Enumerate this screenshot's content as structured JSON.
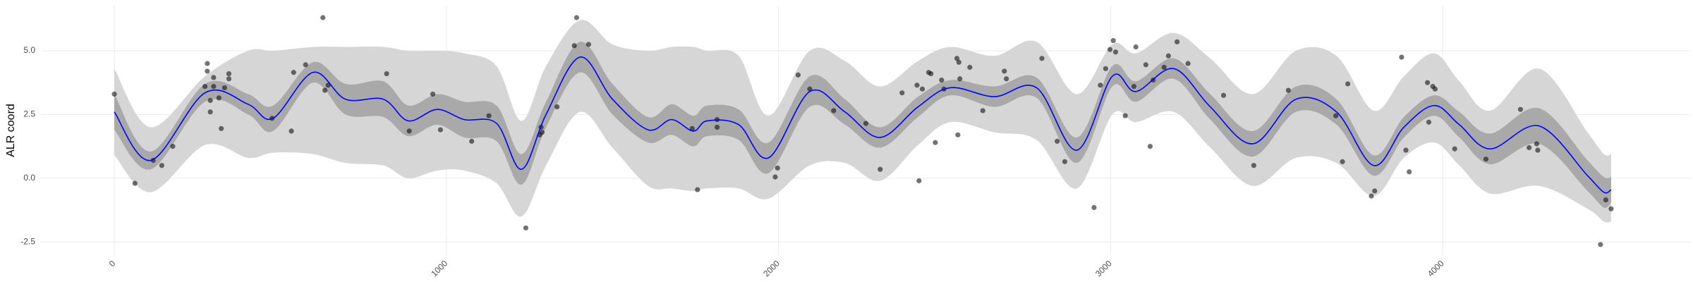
{
  "chart_data": {
    "type": "scatter-smooth",
    "y_label": "ALR coord",
    "xlim": [
      -221,
      4745
    ],
    "ylim": [
      -3.02,
      6.77
    ],
    "xticks": [
      0,
      1000,
      2000,
      3000,
      4000
    ],
    "yticks": [
      -2.5,
      {
        "value": 0,
        "label": "0.0"
      },
      2.5,
      {
        "value": 5,
        "label": "5.0"
      }
    ],
    "grid": true,
    "points": {
      "color": "#000000",
      "opacity": 0.55,
      "x": [
        0,
        62,
        117,
        143,
        176,
        273,
        280,
        280,
        289,
        289,
        299,
        299,
        315,
        322,
        332,
        345,
        345,
        475,
        533,
        540,
        576,
        628,
        634,
        644,
        820,
        888,
        959,
        982,
        1076,
        1128,
        1239,
        1281,
        1285,
        1288,
        1333,
        1385,
        1392,
        1428,
        1740,
        1756,
        1815,
        1815,
        1990,
        1997,
        2059,
        2094,
        2166,
        2263,
        2306,
        2372,
        2417,
        2423,
        2433,
        2452,
        2459,
        2472,
        2491,
        2498,
        2537,
        2543,
        2540,
        2546,
        2576,
        2615,
        2680,
        2686,
        2793,
        2839,
        2862,
        2950,
        2969,
        2985,
        2998,
        3008,
        3015,
        3044,
        3070,
        3076,
        3106,
        3119,
        3128,
        3161,
        3174,
        3200,
        3233,
        3340,
        3431,
        3535,
        3678,
        3698,
        3714,
        3785,
        3795,
        3876,
        3889,
        3899,
        3954,
        3970,
        3977,
        3958,
        4036,
        4130,
        4234,
        4260,
        4283,
        4286,
        4475,
        4491,
        4507
      ],
      "y": [
        3.3,
        -0.2,
        0.7,
        0.5,
        1.25,
        3.6,
        4.5,
        4.2,
        3.05,
        2.6,
        3.6,
        3.95,
        3.15,
        1.95,
        3.55,
        4.1,
        3.9,
        2.35,
        1.85,
        4.15,
        4.45,
        6.3,
        3.45,
        3.65,
        4.1,
        1.85,
        3.3,
        1.9,
        1.45,
        2.45,
        -1.95,
        1.7,
        2.0,
        1.8,
        2.8,
        5.2,
        6.3,
        5.25,
        1.95,
        -0.45,
        2.3,
        2.0,
        0.05,
        0.4,
        4.05,
        3.5,
        2.65,
        2.15,
        0.35,
        3.35,
        3.65,
        -0.1,
        3.5,
        4.15,
        4.1,
        1.4,
        3.85,
        3.5,
        4.7,
        4.55,
        1.7,
        3.9,
        4.35,
        2.65,
        4.2,
        3.9,
        4.7,
        1.45,
        0.65,
        -1.15,
        3.65,
        4.3,
        5.05,
        5.4,
        4.95,
        2.45,
        3.6,
        5.15,
        4.45,
        1.25,
        3.85,
        4.35,
        4.8,
        5.35,
        4.5,
        3.25,
        0.5,
        3.45,
        2.45,
        0.65,
        3.7,
        -0.7,
        -0.5,
        4.75,
        1.1,
        0.25,
        3.75,
        3.6,
        3.5,
        2.2,
        1.15,
        0.75,
        2.7,
        1.2,
        1.35,
        1.1,
        -2.6,
        -0.85,
        -1.2
      ]
    },
    "smooth": {
      "line_color": "#0000ff",
      "inner_color": "#a9a9a9",
      "outer_color": "#d6d6d6",
      "x": [
        0,
        110,
        273,
        403,
        478,
        598,
        696,
        810,
        885,
        972,
        1054,
        1151,
        1226,
        1300,
        1402,
        1500,
        1607,
        1678,
        1743,
        1785,
        1880,
        1970,
        2094,
        2200,
        2306,
        2420,
        2517,
        2650,
        2777,
        2898,
        3005,
        3076,
        3190,
        3300,
        3428,
        3558,
        3680,
        3792,
        3883,
        3974,
        4050,
        4143,
        4290,
        4436,
        4485,
        4507
      ],
      "fit": [
        2.6,
        0.7,
        3.35,
        2.9,
        2.35,
        4.15,
        3.1,
        3.1,
        2.25,
        2.7,
        2.3,
        2.15,
        0.35,
        2.5,
        4.75,
        3.1,
        1.9,
        2.3,
        1.85,
        2.25,
        2.1,
        0.8,
        3.4,
        2.6,
        1.6,
        2.8,
        3.55,
        3.2,
        3.55,
        1.1,
        4.0,
        3.4,
        4.3,
        2.8,
        1.35,
        3.1,
        2.6,
        0.5,
        2.0,
        2.85,
        2.1,
        1.15,
        2.05,
        0.1,
        -0.55,
        -0.45
      ],
      "inner_lower": [
        1.9,
        0.35,
        3.0,
        2.5,
        1.85,
        3.75,
        2.5,
        2.4,
        1.65,
        2.1,
        1.6,
        1.45,
        -0.25,
        2.0,
        4.15,
        2.5,
        1.4,
        1.7,
        1.25,
        1.65,
        1.5,
        0.2,
        2.8,
        2.1,
        1.2,
        2.4,
        3.25,
        2.8,
        3.15,
        0.6,
        3.6,
        3.0,
        3.9,
        2.3,
        0.85,
        2.6,
        2.1,
        0.1,
        1.6,
        2.45,
        1.6,
        0.55,
        1.35,
        -0.5,
        -1.15,
        -0.95
      ],
      "inner_upper": [
        3.3,
        1.05,
        3.7,
        3.3,
        2.85,
        4.55,
        3.7,
        3.8,
        2.85,
        3.3,
        3.0,
        2.85,
        0.95,
        3.0,
        5.35,
        3.7,
        2.4,
        2.9,
        2.45,
        2.85,
        2.7,
        1.4,
        4.0,
        3.1,
        2.0,
        3.2,
        3.85,
        3.6,
        3.95,
        1.6,
        4.4,
        3.8,
        4.7,
        3.3,
        1.85,
        3.6,
        3.1,
        0.9,
        2.4,
        3.25,
        2.6,
        1.75,
        2.75,
        0.7,
        0.05,
        0.05
      ],
      "outer_lower": [
        0.9,
        -0.55,
        1.3,
        0.8,
        1.0,
        0.95,
        0.6,
        0.5,
        0.0,
        0.3,
        0.3,
        -0.2,
        -1.5,
        0.5,
        2.6,
        1.2,
        -0.3,
        -0.4,
        -0.5,
        -0.4,
        -0.4,
        -0.8,
        0.5,
        0.6,
        -0.1,
        1.3,
        2.2,
        1.8,
        1.5,
        -0.4,
        2.5,
        2.2,
        2.6,
        1.2,
        -0.3,
        0.8,
        0.6,
        -0.7,
        0.8,
        1.4,
        0.5,
        -0.6,
        -0.3,
        -1.2,
        -1.7,
        -1.7
      ],
      "outer_upper": [
        4.3,
        2.0,
        4.0,
        5.0,
        5.0,
        5.15,
        5.15,
        5.15,
        5.0,
        5.0,
        4.9,
        4.4,
        2.25,
        4.4,
        6.2,
        5.25,
        5.0,
        5.15,
        5.15,
        5.0,
        4.8,
        2.45,
        5.0,
        4.6,
        3.6,
        4.6,
        5.15,
        4.8,
        5.35,
        3.3,
        5.25,
        4.9,
        5.7,
        4.7,
        3.3,
        5.0,
        4.8,
        2.65,
        4.0,
        4.9,
        3.8,
        2.65,
        4.3,
        1.8,
        0.95,
        0.95
      ]
    }
  }
}
